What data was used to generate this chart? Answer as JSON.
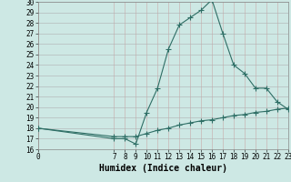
{
  "xlabel": "Humidex (Indice chaleur)",
  "bg_color": "#cde8e4",
  "grid_color_major": "#b0b0b0",
  "grid_color_minor": "#d9d9d9",
  "line_color": "#2e6e65",
  "marker": "+",
  "xlim": [
    0,
    23
  ],
  "ylim": [
    16,
    30
  ],
  "xticks": [
    0,
    7,
    8,
    9,
    10,
    11,
    12,
    13,
    14,
    15,
    16,
    17,
    18,
    19,
    20,
    21,
    22,
    23
  ],
  "yticks": [
    16,
    17,
    18,
    19,
    20,
    21,
    22,
    23,
    24,
    25,
    26,
    27,
    28,
    29,
    30
  ],
  "curve1_x": [
    0,
    7,
    8,
    9,
    10,
    11,
    12,
    13,
    14,
    15,
    16,
    17,
    18,
    19,
    20,
    21,
    22,
    23
  ],
  "curve1_y": [
    18.0,
    17.0,
    17.0,
    16.5,
    19.5,
    21.8,
    25.5,
    27.8,
    28.5,
    29.2,
    30.2,
    27.0,
    24.0,
    23.2,
    21.8,
    21.8,
    20.5,
    19.8
  ],
  "curve2_x": [
    0,
    7,
    8,
    9,
    10,
    11,
    12,
    13,
    14,
    15,
    16,
    17,
    18,
    19,
    20,
    21,
    22,
    23
  ],
  "curve2_y": [
    18.0,
    17.2,
    17.2,
    17.2,
    17.5,
    17.8,
    18.0,
    18.3,
    18.5,
    18.7,
    18.8,
    19.0,
    19.2,
    19.3,
    19.5,
    19.6,
    19.8,
    19.9
  ],
  "font_family": "monospace",
  "tick_fontsize": 5.5,
  "xlabel_fontsize": 7,
  "linewidth": 0.8,
  "markersize": 4,
  "markeredgewidth": 0.8
}
